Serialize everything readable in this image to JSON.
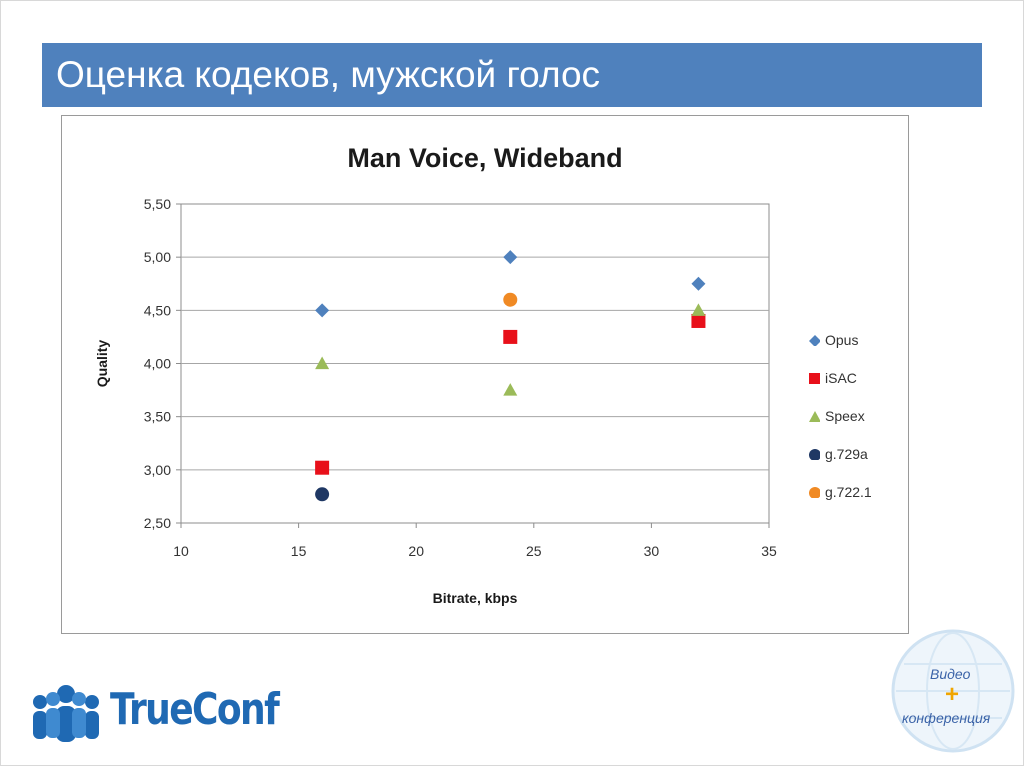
{
  "slide": {
    "title": "Оценка кодеков, мужской голос"
  },
  "chart_data": {
    "type": "scatter",
    "title": "Man Voice, Wideband",
    "xlabel": "Bitrate, kbps",
    "ylabel": "Quality",
    "xlim": [
      10,
      35
    ],
    "ylim": [
      2.5,
      5.5
    ],
    "x_ticks": [
      "10",
      "15",
      "20",
      "25",
      "30",
      "35"
    ],
    "y_ticks": [
      "2,50",
      "3,00",
      "3,50",
      "4,00",
      "4,50",
      "5,00",
      "5,50"
    ],
    "grid": "horizontal",
    "legend_position": "right",
    "series": [
      {
        "name": "Opus",
        "marker": "diamond",
        "color": "#4f81bd",
        "points": [
          [
            16,
            4.5
          ],
          [
            24,
            5.0
          ],
          [
            32,
            4.75
          ]
        ]
      },
      {
        "name": "iSAC",
        "marker": "square",
        "color": "#e8101a",
        "points": [
          [
            16,
            3.02
          ],
          [
            24,
            4.25
          ],
          [
            32,
            4.4
          ]
        ]
      },
      {
        "name": "Speex",
        "marker": "triangle",
        "color": "#9bbb59",
        "points": [
          [
            16,
            4.0
          ],
          [
            24,
            3.75
          ],
          [
            32,
            4.5
          ]
        ]
      },
      {
        "name": "g.729a",
        "marker": "circle",
        "color": "#1f3864",
        "points": [
          [
            16,
            2.77
          ]
        ]
      },
      {
        "name": "g.722.1",
        "marker": "circle",
        "color": "#f08a24",
        "points": [
          [
            24,
            4.6
          ]
        ]
      }
    ]
  },
  "logo": {
    "name": "TrueConf",
    "icon": "people-group-icon",
    "color": "#1f69b3"
  },
  "badge": {
    "line1": "Видео",
    "line2": "конференция",
    "icon": "globe-icon"
  }
}
